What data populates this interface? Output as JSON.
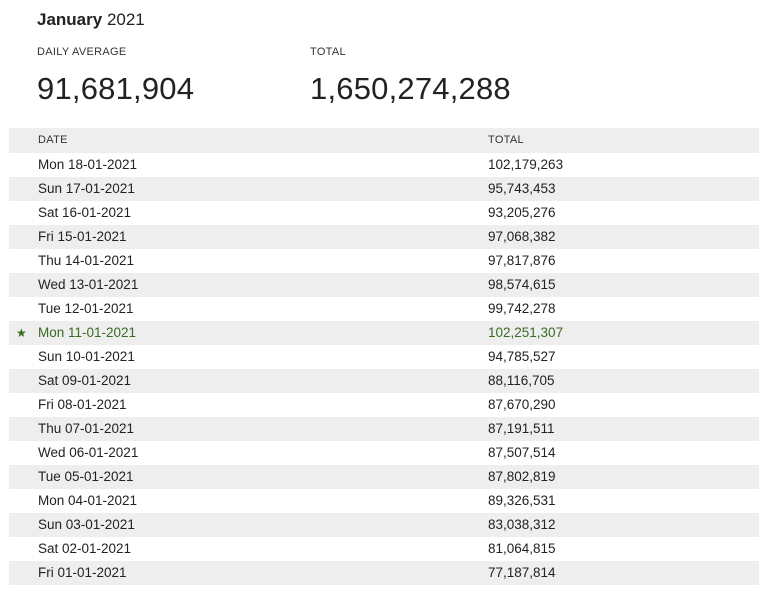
{
  "header": {
    "month": "January",
    "year": "2021"
  },
  "stats": {
    "daily_average_label": "DAILY AVERAGE",
    "daily_average_value": "91,681,904",
    "total_label": "TOTAL",
    "total_value": "1,650,274,288"
  },
  "table": {
    "columns": [
      "DATE",
      "TOTAL"
    ],
    "rows": [
      {
        "date": "Mon 18-01-2021",
        "total": "102,179,263"
      },
      {
        "date": "Sun 17-01-2021",
        "total": "95,743,453"
      },
      {
        "date": "Sat 16-01-2021",
        "total": "93,205,276"
      },
      {
        "date": "Fri 15-01-2021",
        "total": "97,068,382"
      },
      {
        "date": "Thu 14-01-2021",
        "total": "97,817,876"
      },
      {
        "date": "Wed 13-01-2021",
        "total": "98,574,615"
      },
      {
        "date": "Tue 12-01-2021",
        "total": "99,742,278"
      },
      {
        "date": "Mon 11-01-2021",
        "total": "102,251,307",
        "marker": "★"
      },
      {
        "date": "Sun 10-01-2021",
        "total": "94,785,527"
      },
      {
        "date": "Sat 09-01-2021",
        "total": "88,116,705"
      },
      {
        "date": "Fri 08-01-2021",
        "total": "87,670,290"
      },
      {
        "date": "Thu 07-01-2021",
        "total": "87,191,511"
      },
      {
        "date": "Wed 06-01-2021",
        "total": "87,507,514"
      },
      {
        "date": "Tue 05-01-2021",
        "total": "87,802,819"
      },
      {
        "date": "Mon 04-01-2021",
        "total": "89,326,531"
      },
      {
        "date": "Sun 03-01-2021",
        "total": "83,038,312"
      },
      {
        "date": "Sat 02-01-2021",
        "total": "81,064,815"
      },
      {
        "date": "Fri 01-01-2021",
        "total": "77,187,814"
      }
    ]
  },
  "colors": {
    "highlight": "#3a6b22",
    "row_alt_bg": "#eeeeee"
  }
}
